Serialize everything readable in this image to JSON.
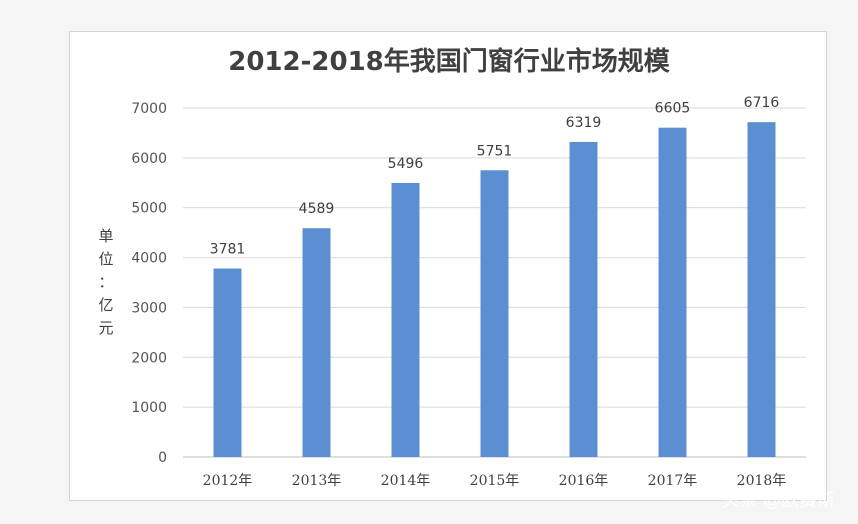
{
  "chart_data": {
    "type": "bar",
    "title": "2012-2018年我国门窗行业市场规模",
    "ylabel": "单位：亿元",
    "ylabel_chars": [
      "单",
      "位",
      "：",
      "亿",
      "元"
    ],
    "categories": [
      "2012年",
      "2013年",
      "2014年",
      "2015年",
      "2016年",
      "2017年",
      "2018年"
    ],
    "values": [
      3781,
      4589,
      5496,
      5751,
      6319,
      6605,
      6716
    ],
    "ylim": [
      0,
      7000
    ],
    "yticks": [
      0,
      1000,
      2000,
      3000,
      4000,
      5000,
      6000,
      7000
    ],
    "grid": true,
    "bar_color": "#5b8fd1"
  },
  "watermark": "头条 @欧赛斯"
}
